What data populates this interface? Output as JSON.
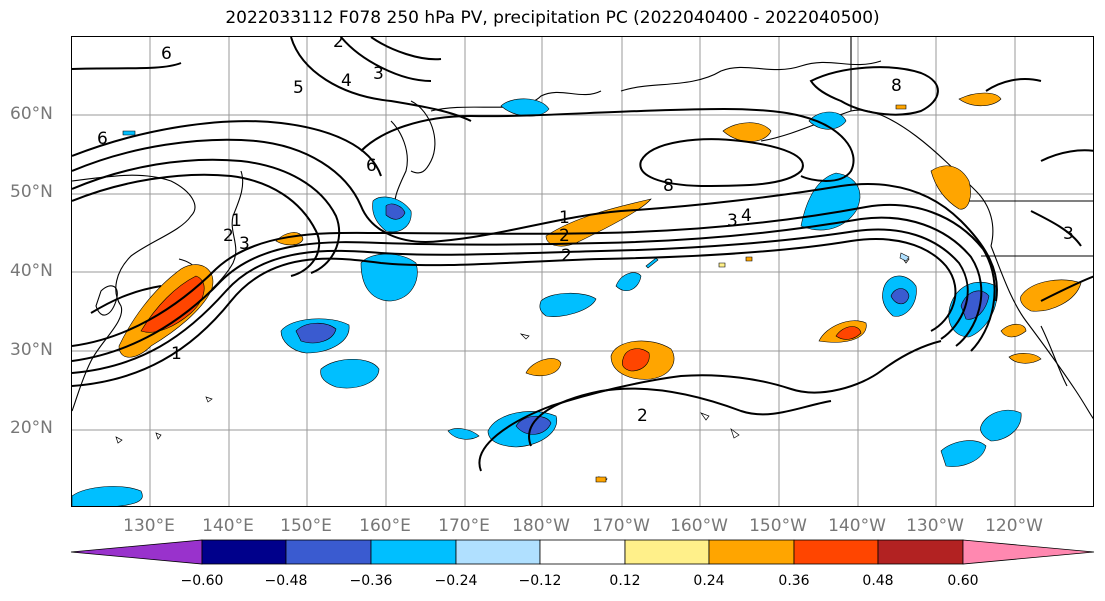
{
  "title": "2022033112 F078 250 hPa PV, precipitation PC (2022040400 - 2022040500)",
  "lat_labels": [
    "60°N",
    "50°N",
    "40°N",
    "30°N",
    "20°N"
  ],
  "lon_labels": [
    "130°E",
    "140°E",
    "150°E",
    "160°E",
    "170°E",
    "180°W",
    "170°W",
    "160°W",
    "150°W",
    "140°W",
    "130°W",
    "120°W"
  ],
  "contour_labels": [
    "6",
    "5",
    "4",
    "3",
    "2",
    "6",
    "6",
    "1",
    "2",
    "3",
    "8",
    "1",
    "2",
    "2",
    "3",
    "4",
    "8",
    "3",
    "1",
    "2"
  ],
  "colorbar": {
    "ticks": [
      "−0.60",
      "−0.48",
      "−0.36",
      "−0.24",
      "−0.12",
      "0.12",
      "0.24",
      "0.36",
      "0.48",
      "0.60"
    ],
    "colors": [
      "#9932cc",
      "#00008b",
      "#3a5bd0",
      "#00bfff",
      "#b0e0ff",
      "#ffffff",
      "#fff08a",
      "#ffa500",
      "#ff4500",
      "#b22222",
      "#ff88b0"
    ]
  }
}
